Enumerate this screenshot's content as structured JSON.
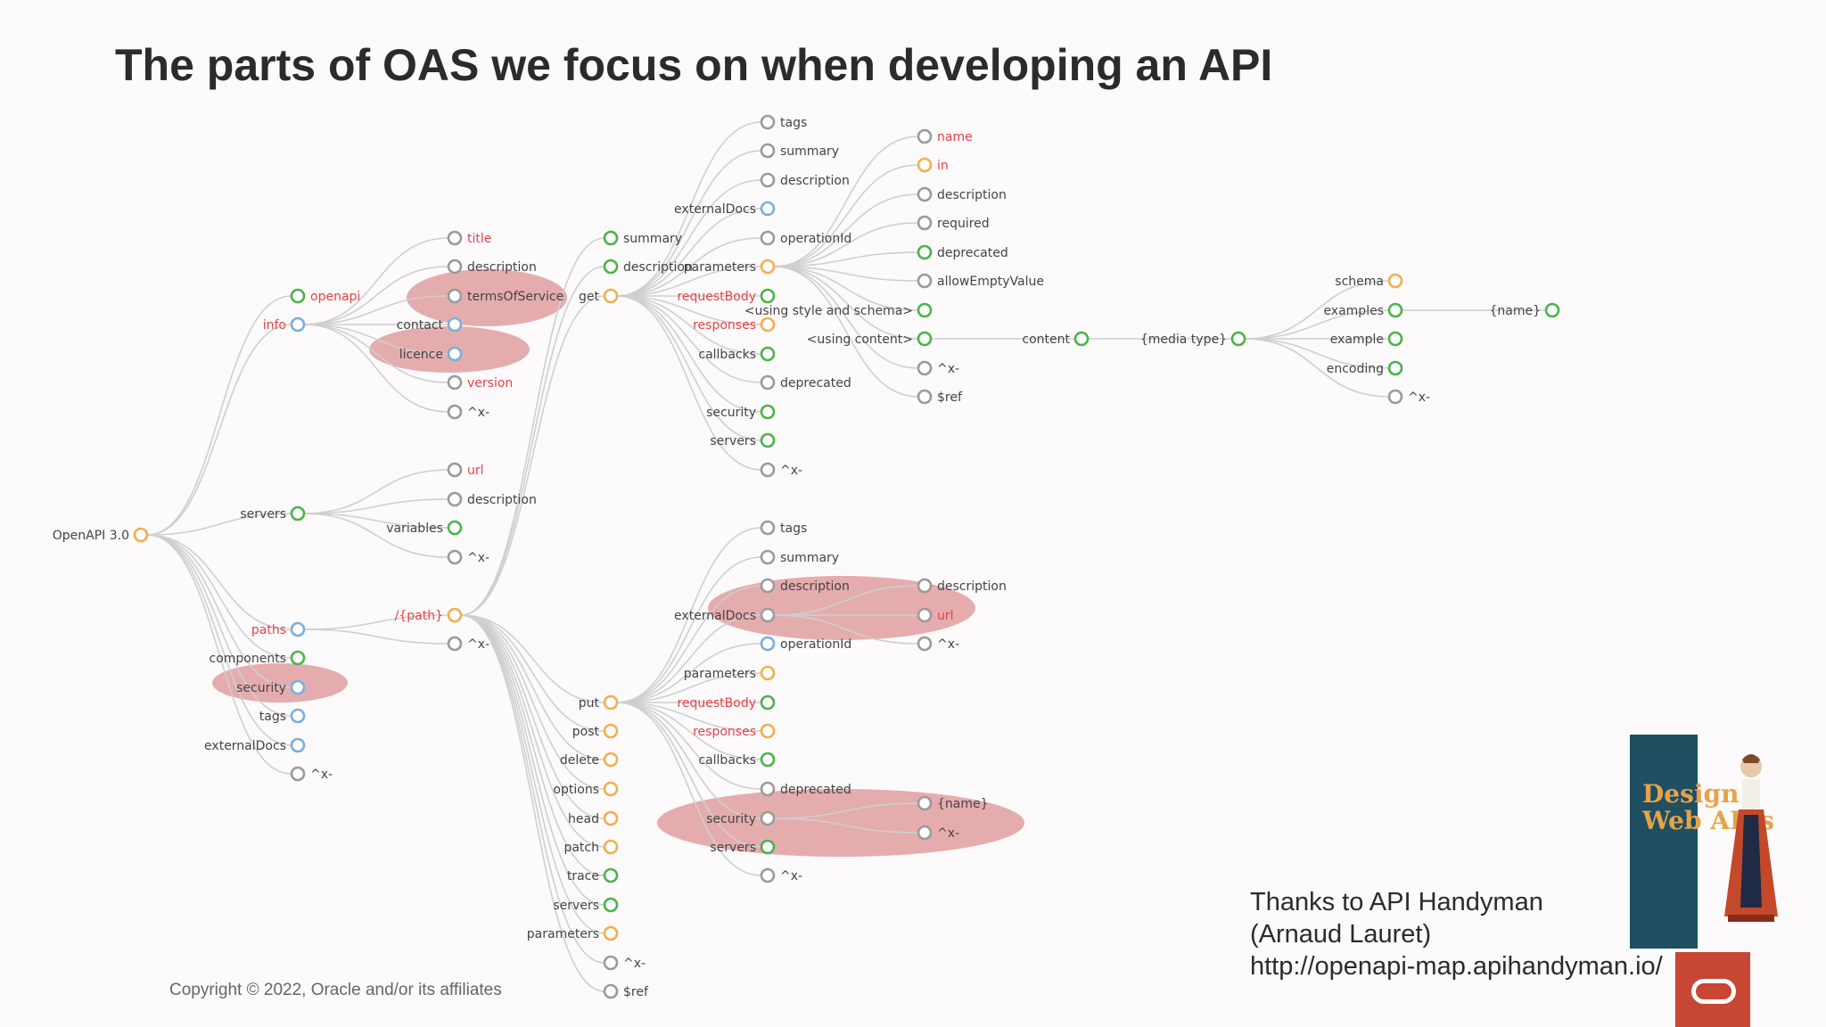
{
  "title": "The parts of OAS we focus on when developing an API",
  "credits": [
    "Thanks to API Handyman",
    "(Arnaud Lauret)",
    "http://openapi-map.apihandyman.io/"
  ],
  "copyright": "Copyright © 2022, Oracle and/or its affiliates",
  "book": {
    "title": "Design\nWeb APIs"
  },
  "logo": {
    "icon": "oracle-logo-icon"
  },
  "colors": {
    "orange": "#f4ad4f",
    "green": "#4ab34a",
    "blue": "#7aaedb",
    "grey": "#9a9a9a",
    "red_label": "#e4434c",
    "highlight": "#d98385",
    "link": "#cfcfcf",
    "label": "#444444"
  },
  "diagram": {
    "nodes": [
      {
        "id": "root",
        "label": "OpenAPI 3.0",
        "color": "orange"
      },
      {
        "id": "openapi",
        "label": "openapi",
        "color": "green",
        "required": true,
        "parent": "root"
      },
      {
        "id": "info",
        "label": "info",
        "color": "blue",
        "required": true,
        "parent": "root"
      },
      {
        "id": "servers",
        "label": "servers",
        "color": "green",
        "parent": "root"
      },
      {
        "id": "paths",
        "label": "paths",
        "color": "blue",
        "required": true,
        "parent": "root"
      },
      {
        "id": "components",
        "label": "components",
        "color": "green",
        "parent": "root"
      },
      {
        "id": "security",
        "label": "security",
        "color": "blue",
        "parent": "root",
        "highlight": true
      },
      {
        "id": "tags",
        "label": "tags",
        "color": "blue",
        "parent": "root"
      },
      {
        "id": "externalDocs",
        "label": "externalDocs",
        "color": "blue",
        "parent": "root"
      },
      {
        "id": "root_x",
        "label": "^x-",
        "color": "grey",
        "parent": "root"
      },
      {
        "id": "i_title",
        "label": "title",
        "color": "grey",
        "required": true,
        "parent": "info"
      },
      {
        "id": "i_desc",
        "label": "description",
        "color": "grey",
        "parent": "info"
      },
      {
        "id": "i_tos",
        "label": "termsOfService",
        "color": "grey",
        "parent": "info",
        "highlight": true
      },
      {
        "id": "i_contact",
        "label": "contact",
        "color": "blue",
        "parent": "info"
      },
      {
        "id": "i_licence",
        "label": "licence",
        "color": "blue",
        "parent": "info",
        "highlight": true
      },
      {
        "id": "i_version",
        "label": "version",
        "color": "grey",
        "required": true,
        "parent": "info"
      },
      {
        "id": "i_x",
        "label": "^x-",
        "color": "grey",
        "parent": "info"
      },
      {
        "id": "s_url",
        "label": "url",
        "color": "grey",
        "required": true,
        "parent": "servers"
      },
      {
        "id": "s_desc",
        "label": "description",
        "color": "grey",
        "parent": "servers"
      },
      {
        "id": "s_vars",
        "label": "variables",
        "color": "green",
        "parent": "servers"
      },
      {
        "id": "s_x",
        "label": "^x-",
        "color": "grey",
        "parent": "servers"
      },
      {
        "id": "p_path",
        "label": "/{path}",
        "color": "orange",
        "required": true,
        "parent": "paths"
      },
      {
        "id": "p_x",
        "label": "^x-",
        "color": "grey",
        "parent": "paths"
      },
      {
        "id": "pp_summary",
        "label": "summary",
        "color": "green",
        "parent": "p_path"
      },
      {
        "id": "pp_desc",
        "label": "description",
        "color": "green",
        "parent": "p_path"
      },
      {
        "id": "pp_get",
        "label": "get",
        "color": "orange",
        "parent": "p_path"
      },
      {
        "id": "pp_put",
        "label": "put",
        "color": "orange",
        "parent": "p_path"
      },
      {
        "id": "pp_post",
        "label": "post",
        "color": "orange",
        "parent": "p_path"
      },
      {
        "id": "pp_delete",
        "label": "delete",
        "color": "orange",
        "parent": "p_path"
      },
      {
        "id": "pp_options",
        "label": "options",
        "color": "orange",
        "parent": "p_path"
      },
      {
        "id": "pp_head",
        "label": "head",
        "color": "orange",
        "parent": "p_path"
      },
      {
        "id": "pp_patch",
        "label": "patch",
        "color": "orange",
        "parent": "p_path"
      },
      {
        "id": "pp_trace",
        "label": "trace",
        "color": "green",
        "parent": "p_path"
      },
      {
        "id": "pp_servers",
        "label": "servers",
        "color": "green",
        "parent": "p_path"
      },
      {
        "id": "pp_params",
        "label": "parameters",
        "color": "orange",
        "parent": "p_path"
      },
      {
        "id": "pp_x",
        "label": "^x-",
        "color": "grey",
        "parent": "p_path"
      },
      {
        "id": "pp_ref",
        "label": "$ref",
        "color": "grey",
        "parent": "p_path"
      },
      {
        "id": "g_tags",
        "label": "tags",
        "color": "grey",
        "parent": "pp_get"
      },
      {
        "id": "g_summary",
        "label": "summary",
        "color": "grey",
        "parent": "pp_get"
      },
      {
        "id": "g_desc",
        "label": "description",
        "color": "grey",
        "parent": "pp_get"
      },
      {
        "id": "g_ext",
        "label": "externalDocs",
        "color": "blue",
        "parent": "pp_get"
      },
      {
        "id": "g_opid",
        "label": "operationId",
        "color": "grey",
        "parent": "pp_get"
      },
      {
        "id": "g_params",
        "label": "parameters",
        "color": "orange",
        "parent": "pp_get"
      },
      {
        "id": "g_body",
        "label": "requestBody",
        "color": "green",
        "required": true,
        "parent": "pp_get"
      },
      {
        "id": "g_resp",
        "label": "responses",
        "color": "orange",
        "required": true,
        "parent": "pp_get"
      },
      {
        "id": "g_cb",
        "label": "callbacks",
        "color": "green",
        "parent": "pp_get"
      },
      {
        "id": "g_depr",
        "label": "deprecated",
        "color": "grey",
        "parent": "pp_get"
      },
      {
        "id": "g_sec",
        "label": "security",
        "color": "green",
        "parent": "pp_get"
      },
      {
        "id": "g_srv",
        "label": "servers",
        "color": "green",
        "parent": "pp_get"
      },
      {
        "id": "g_x",
        "label": "^x-",
        "color": "grey",
        "parent": "pp_get"
      },
      {
        "id": "pa_name",
        "label": "name",
        "color": "grey",
        "required": true,
        "parent": "g_params"
      },
      {
        "id": "pa_in",
        "label": "in",
        "color": "orange",
        "required": true,
        "parent": "g_params"
      },
      {
        "id": "pa_desc",
        "label": "description",
        "color": "grey",
        "parent": "g_params"
      },
      {
        "id": "pa_req",
        "label": "required",
        "color": "grey",
        "parent": "g_params"
      },
      {
        "id": "pa_depr",
        "label": "deprecated",
        "color": "green",
        "parent": "g_params"
      },
      {
        "id": "pa_empty",
        "label": "allowEmptyValue",
        "color": "grey",
        "parent": "g_params"
      },
      {
        "id": "pa_style",
        "label": "<using style and schema>",
        "color": "green",
        "parent": "g_params"
      },
      {
        "id": "pa_content",
        "label": "<using content>",
        "color": "green",
        "parent": "g_params"
      },
      {
        "id": "pa_x",
        "label": "^x-",
        "color": "grey",
        "parent": "g_params"
      },
      {
        "id": "pa_ref",
        "label": "$ref",
        "color": "grey",
        "parent": "g_params"
      },
      {
        "id": "c_content",
        "label": "content",
        "color": "green",
        "parent": "pa_content"
      },
      {
        "id": "c_media",
        "label": "{media type}",
        "color": "green",
        "parent": "c_content"
      },
      {
        "id": "m_schema",
        "label": "schema",
        "color": "orange",
        "parent": "c_media"
      },
      {
        "id": "m_examples",
        "label": "examples",
        "color": "green",
        "parent": "c_media"
      },
      {
        "id": "m_example",
        "label": "example",
        "color": "green",
        "parent": "c_media"
      },
      {
        "id": "m_encoding",
        "label": "encoding",
        "color": "green",
        "parent": "c_media"
      },
      {
        "id": "m_x",
        "label": "^x-",
        "color": "grey",
        "parent": "c_media"
      },
      {
        "id": "e_name",
        "label": "{name}",
        "color": "green",
        "parent": "m_examples"
      },
      {
        "id": "u_tags",
        "label": "tags",
        "color": "grey",
        "parent": "pp_put"
      },
      {
        "id": "u_summary",
        "label": "summary",
        "color": "grey",
        "parent": "pp_put"
      },
      {
        "id": "u_desc",
        "label": "description",
        "color": "grey",
        "parent": "pp_put",
        "highlight": true
      },
      {
        "id": "u_ext",
        "label": "externalDocs",
        "color": "grey",
        "parent": "pp_put",
        "highlight": true
      },
      {
        "id": "u_opid",
        "label": "operationId",
        "color": "blue",
        "parent": "pp_put"
      },
      {
        "id": "u_params",
        "label": "parameters",
        "color": "orange",
        "parent": "pp_put"
      },
      {
        "id": "u_body",
        "label": "requestBody",
        "color": "green",
        "required": true,
        "parent": "pp_put"
      },
      {
        "id": "u_resp",
        "label": "responses",
        "color": "orange",
        "required": true,
        "parent": "pp_put"
      },
      {
        "id": "u_cb",
        "label": "callbacks",
        "color": "green",
        "parent": "pp_put"
      },
      {
        "id": "u_depr",
        "label": "deprecated",
        "color": "grey",
        "parent": "pp_put",
        "highlight": true
      },
      {
        "id": "u_sec",
        "label": "security",
        "color": "grey",
        "parent": "pp_put",
        "highlight": true
      },
      {
        "id": "u_srv",
        "label": "servers",
        "color": "green",
        "parent": "pp_put",
        "highlight": true
      },
      {
        "id": "u_x",
        "label": "^x-",
        "color": "grey",
        "parent": "pp_put"
      },
      {
        "id": "ue_desc",
        "label": "description",
        "color": "grey",
        "parent": "u_ext",
        "highlight": true
      },
      {
        "id": "ue_url",
        "label": "url",
        "color": "grey",
        "required": true,
        "parent": "u_ext",
        "highlight": true
      },
      {
        "id": "ue_x",
        "label": "^x-",
        "color": "grey",
        "parent": "u_ext"
      },
      {
        "id": "us_name",
        "label": "{name}",
        "color": "grey",
        "parent": "u_sec",
        "highlight": true
      },
      {
        "id": "us_x",
        "label": "^x-",
        "color": "grey",
        "parent": "u_sec",
        "highlight": true
      }
    ]
  }
}
